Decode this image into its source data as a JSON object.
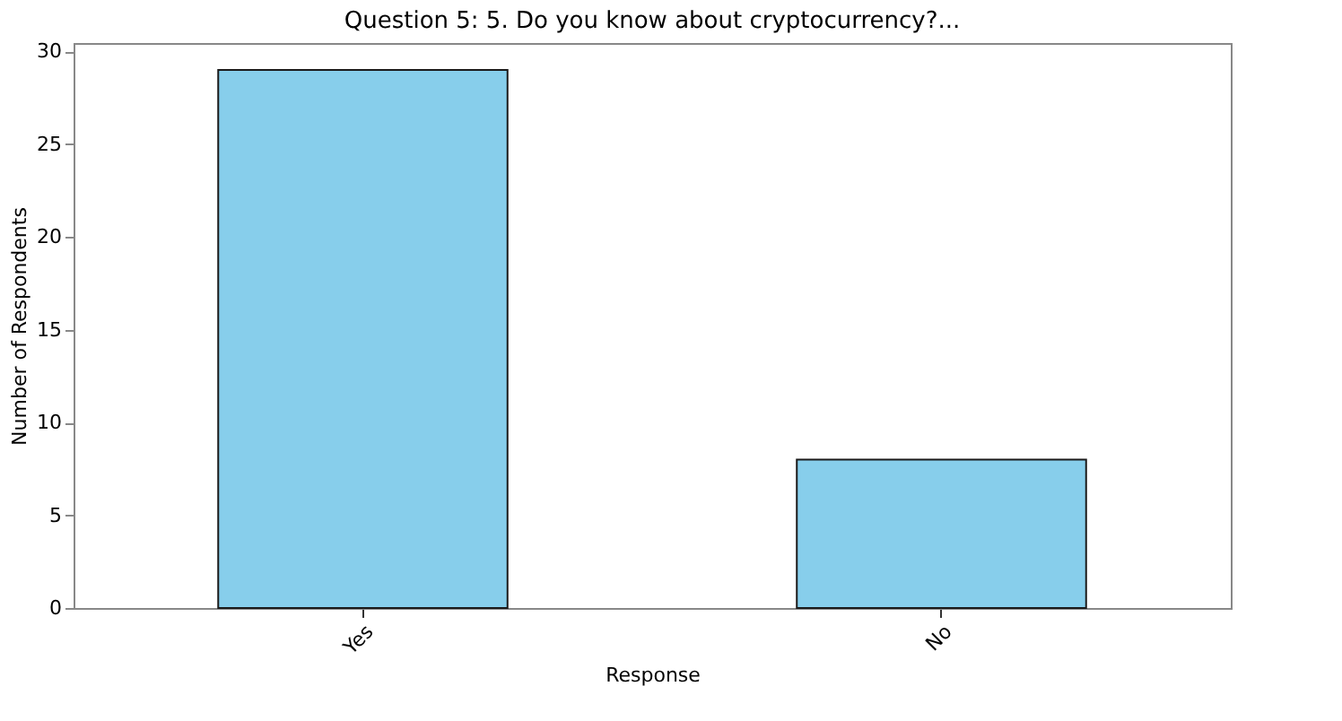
{
  "chart_data": {
    "type": "bar",
    "title": "Question 5: 5.  Do you know about cryptocurrency?...",
    "xlabel": "Response",
    "ylabel": "Number of Respondents",
    "categories": [
      "Yes",
      "No"
    ],
    "values": [
      29,
      8
    ],
    "color": "#87ceeb",
    "ylim": [
      0,
      30.45
    ],
    "yticks": [
      0,
      5,
      10,
      15,
      20,
      25,
      30
    ],
    "grid": false
  }
}
